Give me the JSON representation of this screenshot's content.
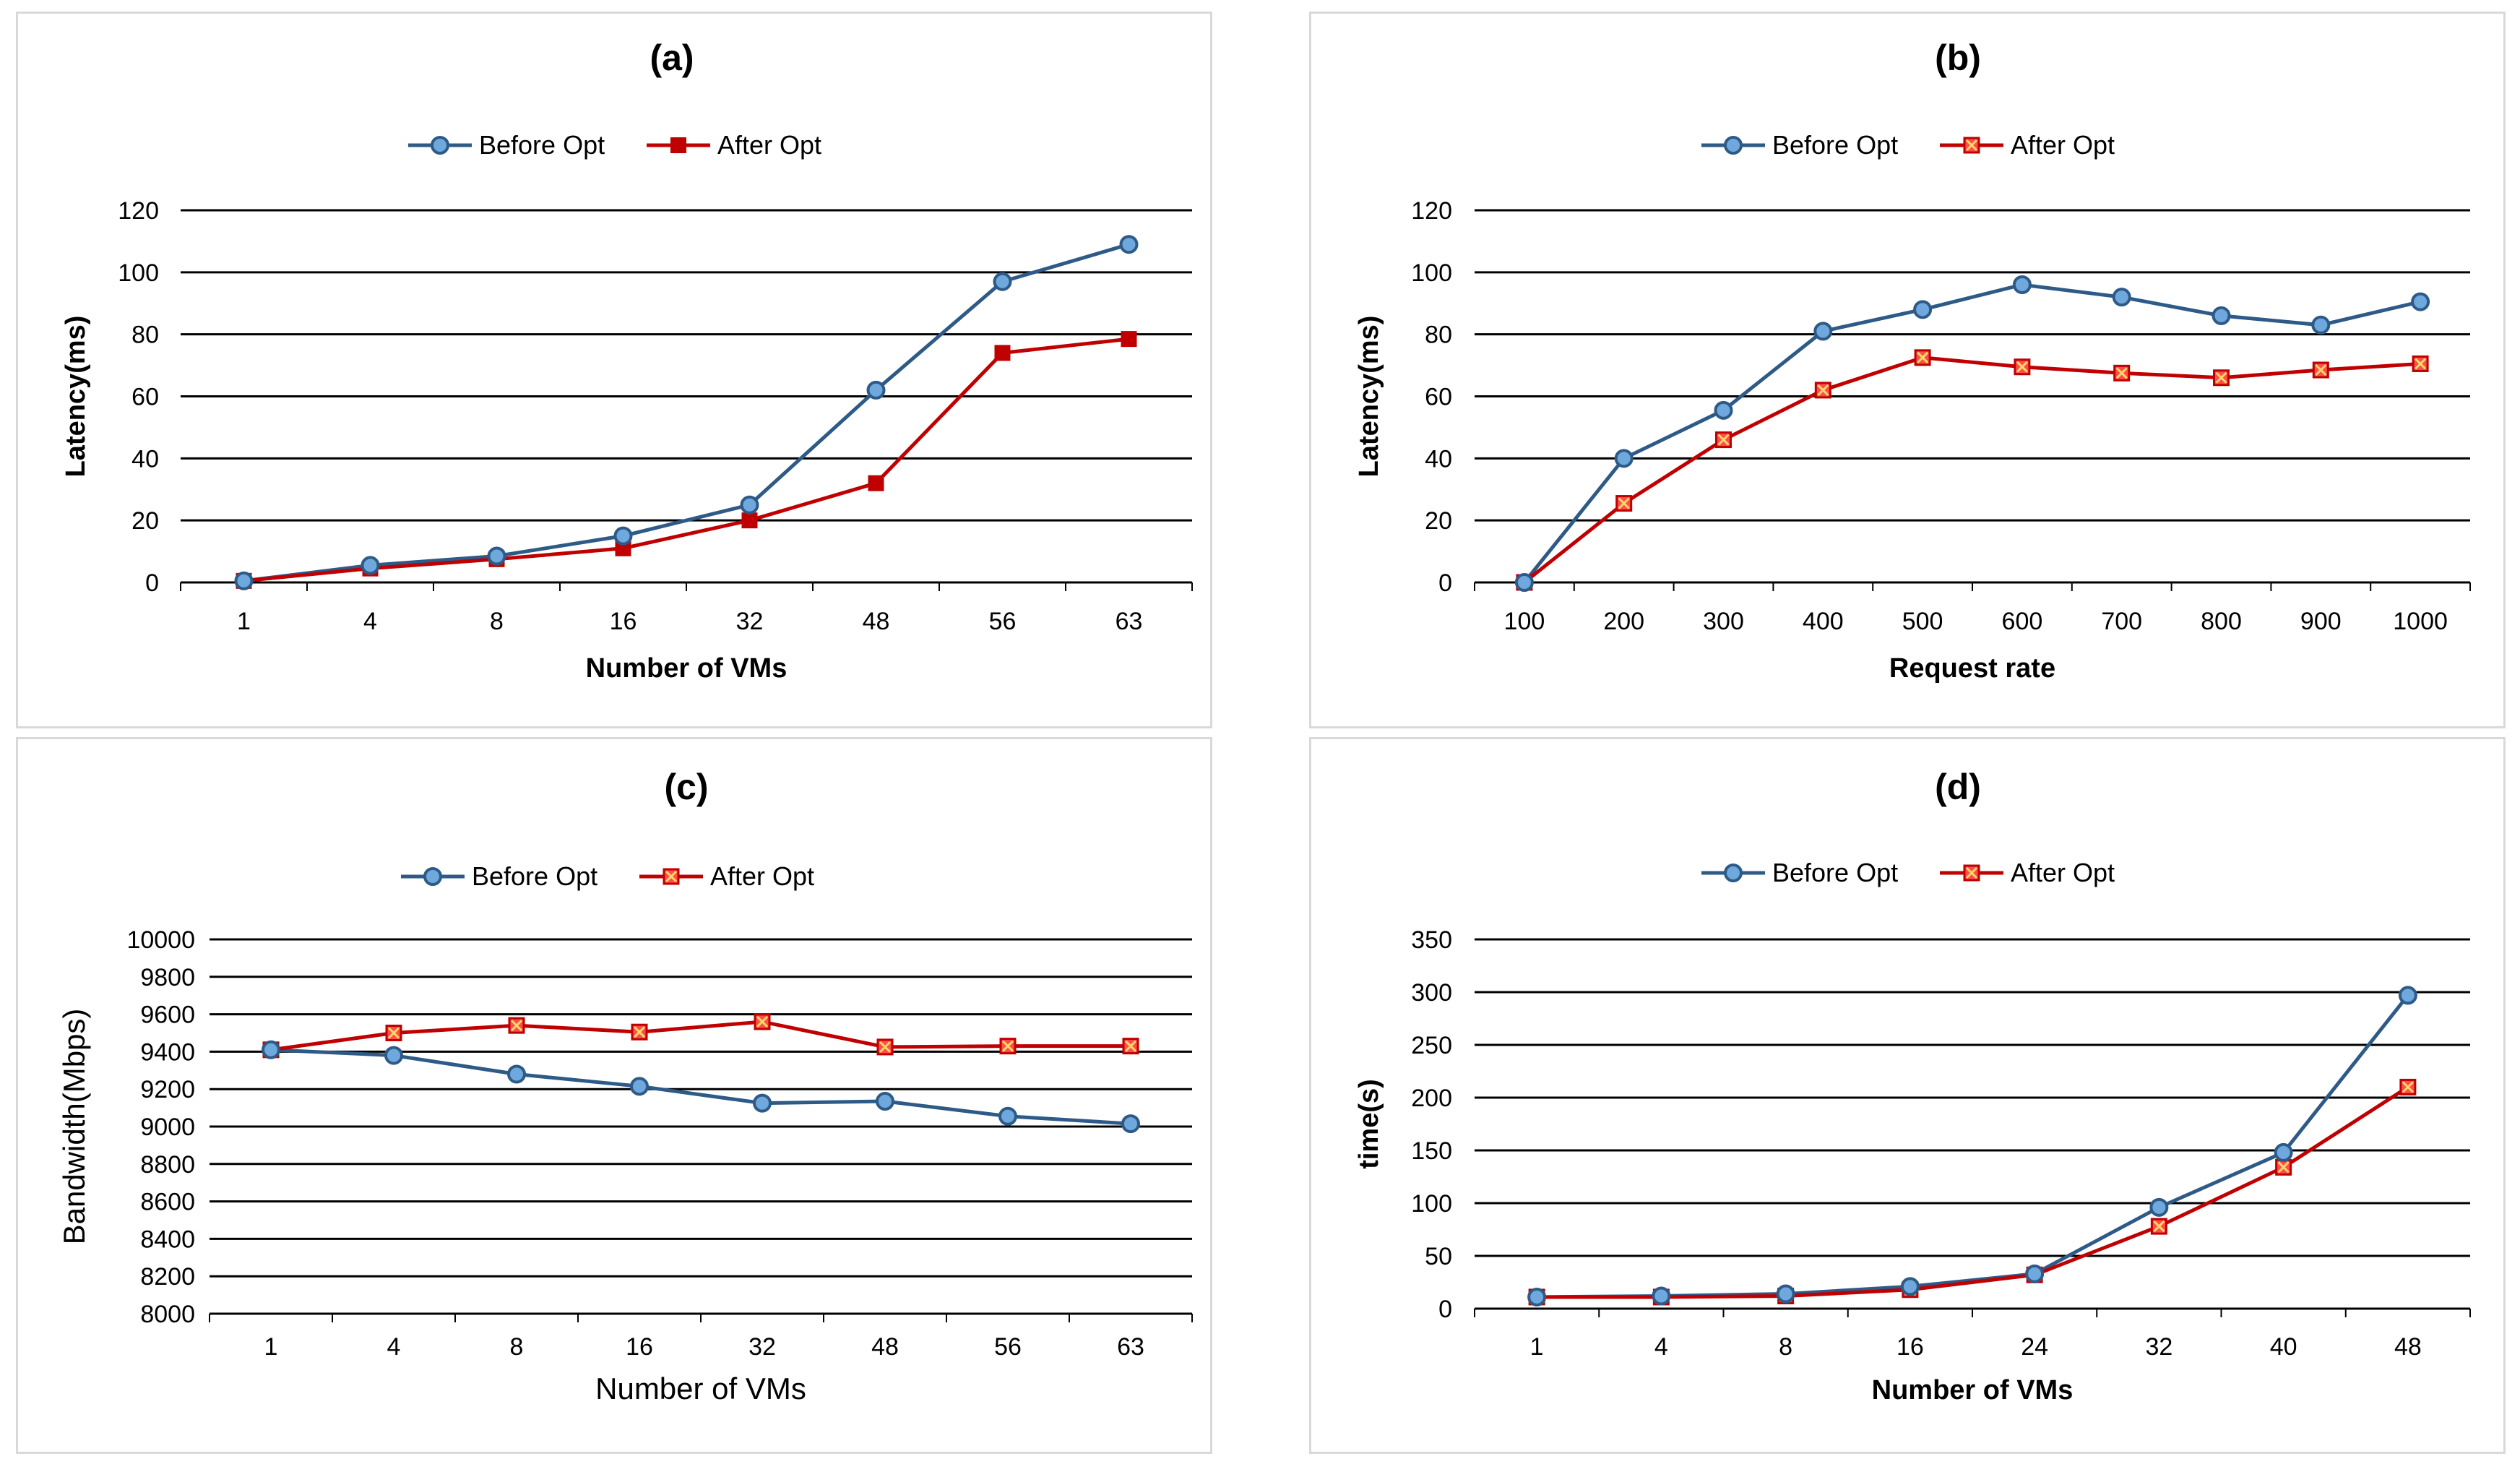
{
  "colors": {
    "before": "#2e5a87",
    "after": "#c00000",
    "before_marker": "#6fa8dc",
    "after_marker": "#ff4d4d"
  },
  "chart_data": [
    {
      "type": "line",
      "title": "(a)",
      "xlabel": "Number of VMs",
      "ylabel": "Latency(ms)",
      "categories": [
        "1",
        "4",
        "8",
        "16",
        "32",
        "48",
        "56",
        "63"
      ],
      "ylim": [
        0,
        120
      ],
      "yticks": [
        "0",
        "20",
        "40",
        "60",
        "80",
        "100",
        "120"
      ],
      "grid": true,
      "legend": "top",
      "series": [
        {
          "name": "Before Opt",
          "values": [
            0.5,
            5.5,
            8.5,
            15,
            25,
            62,
            97,
            109
          ]
        },
        {
          "name": "After Opt",
          "values": [
            0.5,
            4.5,
            7.5,
            11,
            20,
            32,
            74,
            78.5
          ]
        }
      ]
    },
    {
      "type": "line",
      "title": "(b)",
      "xlabel": "Request rate",
      "ylabel": "Latency(ms)",
      "categories": [
        "100",
        "200",
        "300",
        "400",
        "500",
        "600",
        "700",
        "800",
        "900",
        "1000"
      ],
      "ylim": [
        0,
        120
      ],
      "yticks": [
        "0",
        "20",
        "40",
        "60",
        "80",
        "100",
        "120"
      ],
      "grid": true,
      "legend": "top",
      "series": [
        {
          "name": "Before Opt",
          "values": [
            0,
            40,
            55.5,
            81,
            88,
            96,
            92,
            86,
            83,
            90.5
          ]
        },
        {
          "name": "After Opt",
          "values": [
            0,
            25.5,
            46,
            62,
            72.5,
            69.5,
            67.5,
            66,
            68.5,
            70.5
          ]
        }
      ]
    },
    {
      "type": "line",
      "title": "(c)",
      "xlabel": "Number of VMs",
      "ylabel": "Bandwidth(Mbps)",
      "categories": [
        "1",
        "4",
        "8",
        "16",
        "32",
        "48",
        "56",
        "63"
      ],
      "ylim": [
        8000,
        10000
      ],
      "yticks": [
        "8000",
        "8200",
        "8400",
        "8600",
        "8800",
        "9000",
        "9200",
        "9400",
        "9600",
        "9800",
        "10000"
      ],
      "grid": true,
      "legend": "top",
      "series": [
        {
          "name": "Before Opt",
          "values": [
            9410,
            9380,
            9280,
            9215,
            9125,
            9135,
            9055,
            9015
          ]
        },
        {
          "name": "After Opt",
          "values": [
            9410,
            9500,
            9540,
            9505,
            9560,
            9425,
            9430,
            9430
          ]
        }
      ]
    },
    {
      "type": "line",
      "title": "(d)",
      "xlabel": "Number of VMs",
      "ylabel": "time(s)",
      "categories": [
        "1",
        "4",
        "8",
        "16",
        "24",
        "32",
        "40",
        "48"
      ],
      "ylim": [
        0,
        350
      ],
      "yticks": [
        "0",
        "50",
        "100",
        "150",
        "200",
        "250",
        "300",
        "350"
      ],
      "grid": true,
      "legend": "top",
      "series": [
        {
          "name": "Before Opt",
          "values": [
            11,
            12,
            14,
            21,
            33,
            96,
            148,
            297
          ]
        },
        {
          "name": "After Opt",
          "values": [
            11,
            11,
            12,
            18,
            32,
            78,
            134,
            210
          ]
        }
      ]
    }
  ]
}
